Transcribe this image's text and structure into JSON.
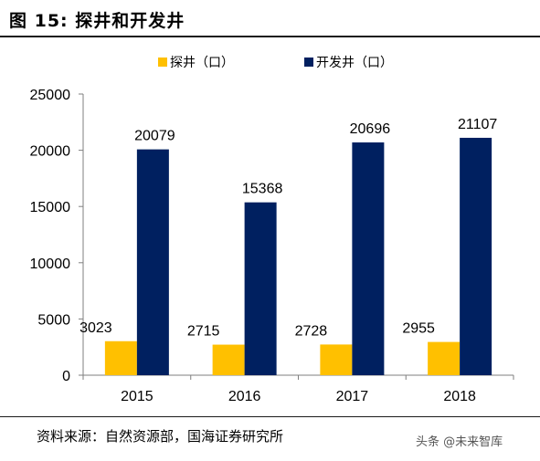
{
  "figure": {
    "title": "图 15:  探井和开发井",
    "source": "资料来源：自然资源部，国海证券研究所",
    "watermark": "头条 @未来智库"
  },
  "colors": {
    "series_0": "#FFC000",
    "series_1": "#002060",
    "axis": "#7f7f7f"
  },
  "chart_data": {
    "type": "bar",
    "categories": [
      "2015",
      "2016",
      "2017",
      "2018"
    ],
    "series": [
      {
        "name": "探井（口）",
        "values": [
          3023,
          2715,
          2728,
          2955
        ]
      },
      {
        "name": "开发井（口）",
        "values": [
          20079,
          15368,
          20696,
          21107
        ]
      }
    ],
    "ylim": [
      0,
      25000
    ],
    "yticks": [
      0,
      5000,
      10000,
      15000,
      20000,
      25000
    ],
    "data_labels": true,
    "grid": false,
    "legend_position": "top-center"
  }
}
